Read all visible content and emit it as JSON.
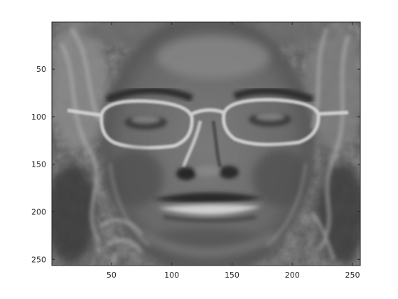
{
  "figure": {
    "image_description_colormap": "gray",
    "x_ticks": [
      "50",
      "100",
      "150",
      "200",
      "250"
    ],
    "y_ticks": [
      "50",
      "100",
      "150",
      "200",
      "250"
    ],
    "x_tick_values": [
      50,
      100,
      150,
      200,
      250
    ],
    "y_tick_values": [
      50,
      100,
      150,
      200,
      250
    ],
    "x_range": [
      0.5,
      256.5
    ],
    "y_range": [
      0.5,
      256.5
    ],
    "y_direction": "reverse",
    "colors": {
      "axis": "#262626",
      "background": "#ffffff",
      "image_base": "#6e6e6e"
    }
  }
}
